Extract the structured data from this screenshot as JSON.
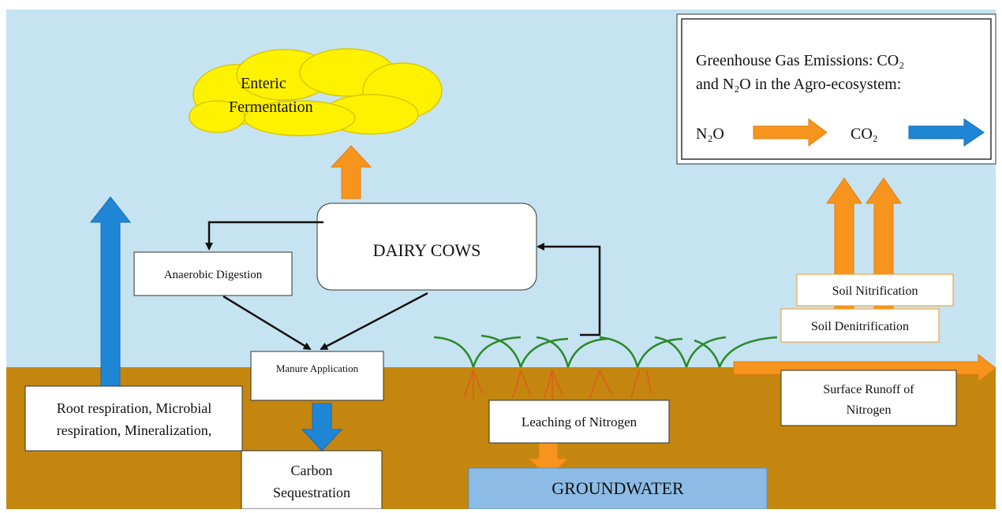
{
  "cloud": {
    "lines": [
      "Enteric",
      "Fermentation"
    ]
  },
  "nodes": {
    "dairy_cows": {
      "label": "DAIRY COWS"
    },
    "anaerobic_digestion": {
      "label": "Anaerobic Digestion"
    },
    "manure_application": {
      "label": "Manure Application"
    },
    "carbon_sequestration": {
      "lines": [
        "Carbon",
        "Sequestration"
      ]
    },
    "respiration": {
      "lines": [
        "Root respiration, Microbial",
        "respiration,  Mineralization,"
      ]
    },
    "leaching": {
      "label": "Leaching of Nitrogen"
    },
    "groundwater": {
      "label": "GROUNDWATER"
    },
    "nitrification": {
      "label": "Soil Nitrification"
    },
    "denitrification": {
      "label": "Soil Denitrification"
    },
    "runoff": {
      "lines": [
        "Surface Runoff of",
        "Nitrogen"
      ]
    }
  },
  "legend": {
    "title_lines": [
      "Greenhouse Gas Emissions: CO₂",
      "and N₂O in the Agro-ecosystem:"
    ],
    "items": [
      {
        "label": "N₂O"
      },
      {
        "label": "CO₂"
      }
    ]
  }
}
